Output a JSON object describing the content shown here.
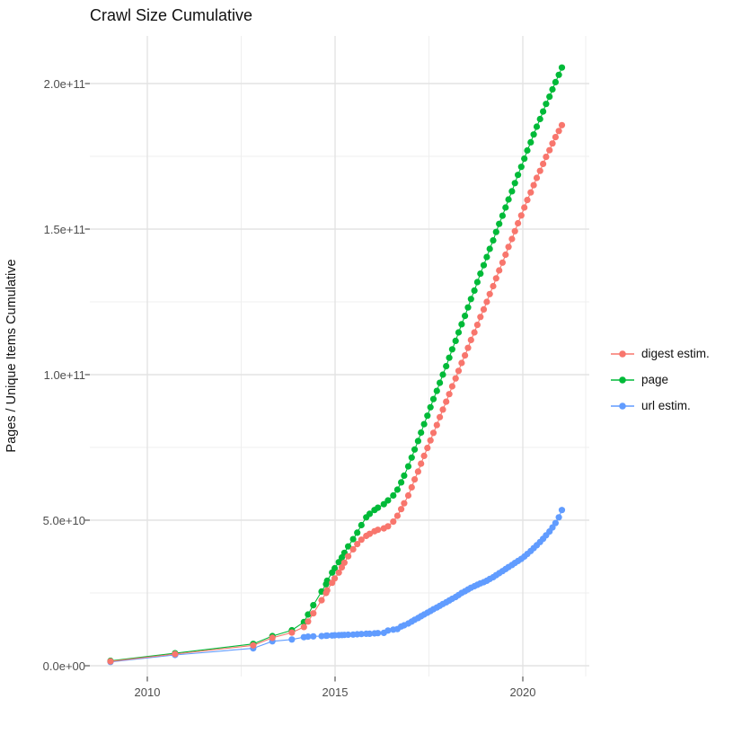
{
  "title": "Crawl Size Cumulative",
  "axes": {
    "y_title": "Pages / Unique Items Cumulative",
    "y_ticks": [
      {
        "label": "0.0e+00",
        "value_e9": 0
      },
      {
        "label": "5.0e+10",
        "value_e9": 50
      },
      {
        "label": "1.0e+11",
        "value_e9": 100
      },
      {
        "label": "1.5e+11",
        "value_e9": 150
      },
      {
        "label": "2.0e+11",
        "value_e9": 200
      }
    ],
    "x_ticks": [
      {
        "label": "2010",
        "year": 2010
      },
      {
        "label": "2015",
        "year": 2015
      },
      {
        "label": "2020",
        "year": 2020
      }
    ]
  },
  "legend": {
    "items": [
      {
        "label": "digest estim.",
        "color": "#F8766D"
      },
      {
        "label": "page",
        "color": "#00BA38"
      },
      {
        "label": "url estim.",
        "color": "#619CFF"
      }
    ]
  },
  "colors": {
    "digest": "#F8766D",
    "page": "#00BA38",
    "url": "#619CFF",
    "grid_major": "#e3e3e3",
    "grid_minor": "#efefef",
    "tick_mark": "#333333",
    "tick_text": "#4d4d4d"
  },
  "chart_data": {
    "type": "scatter",
    "title": "Crawl Size Cumulative",
    "xlabel": "",
    "ylabel": "Pages / Unique Items Cumulative",
    "x_unit": "year (crawl date)",
    "value_unit": "items, stored as billions (1 = 1e9)",
    "xlim": [
      2008.5,
      2021.8
    ],
    "ylim_e9": [
      0,
      212
    ],
    "x_major_ticks": [
      2010,
      2015,
      2020
    ],
    "x_minor_ticks": [
      2012.5,
      2017.5
    ],
    "y_major_ticks_e9": [
      0,
      50,
      100,
      150,
      200
    ],
    "y_minor_ticks_e9": [
      25,
      75,
      125,
      175
    ],
    "grid": true,
    "legend_position": "right",
    "series": [
      {
        "name": "digest estim.",
        "color": "#F8766D",
        "points": [
          [
            2009.02,
            1.5
          ],
          [
            2010.74,
            4.0
          ],
          [
            2012.82,
            7.0
          ],
          [
            2013.33,
            9.6
          ],
          [
            2013.85,
            11.4
          ],
          [
            2014.17,
            13.3
          ],
          [
            2014.28,
            15.2
          ],
          [
            2014.42,
            18.0
          ],
          [
            2014.64,
            22.5
          ],
          [
            2014.76,
            25.0
          ],
          [
            2014.79,
            25.9
          ],
          [
            2014.92,
            28.5
          ],
          [
            2014.99,
            30.0
          ],
          [
            2015.1,
            32.0
          ],
          [
            2015.18,
            33.8
          ],
          [
            2015.25,
            35.4
          ],
          [
            2015.35,
            37.6
          ],
          [
            2015.48,
            40.0
          ],
          [
            2015.59,
            41.8
          ],
          [
            2015.7,
            43.3
          ],
          [
            2015.83,
            44.6
          ],
          [
            2015.92,
            45.3
          ],
          [
            2016.05,
            46.2
          ],
          [
            2016.14,
            46.7
          ],
          [
            2016.3,
            47.2
          ],
          [
            2016.41,
            47.9
          ],
          [
            2016.55,
            49.5
          ],
          [
            2016.66,
            51.5
          ],
          [
            2016.76,
            53.8
          ],
          [
            2016.84,
            55.8
          ],
          [
            2016.95,
            58.5
          ],
          [
            2017.04,
            61.3
          ],
          [
            2017.12,
            64.0
          ],
          [
            2017.21,
            66.7
          ],
          [
            2017.29,
            69.4
          ],
          [
            2017.37,
            72.1
          ],
          [
            2017.46,
            74.8
          ],
          [
            2017.54,
            77.4
          ],
          [
            2017.62,
            80.0
          ],
          [
            2017.71,
            82.7
          ],
          [
            2017.79,
            85.4
          ],
          [
            2017.87,
            88.0
          ],
          [
            2017.96,
            90.7
          ],
          [
            2018.04,
            93.3
          ],
          [
            2018.12,
            96.0
          ],
          [
            2018.21,
            98.7
          ],
          [
            2018.29,
            101.3
          ],
          [
            2018.37,
            104.0
          ],
          [
            2018.46,
            106.6
          ],
          [
            2018.54,
            109.2
          ],
          [
            2018.62,
            111.9
          ],
          [
            2018.71,
            114.5
          ],
          [
            2018.79,
            117.1
          ],
          [
            2018.87,
            119.8
          ],
          [
            2018.96,
            122.4
          ],
          [
            2019.04,
            125.0
          ],
          [
            2019.12,
            127.7
          ],
          [
            2019.21,
            130.4
          ],
          [
            2019.29,
            133.1
          ],
          [
            2019.37,
            135.8
          ],
          [
            2019.46,
            138.5
          ],
          [
            2019.54,
            141.2
          ],
          [
            2019.62,
            143.9
          ],
          [
            2019.71,
            146.6
          ],
          [
            2019.79,
            149.3
          ],
          [
            2019.87,
            152.0
          ],
          [
            2019.96,
            154.7
          ],
          [
            2020.04,
            157.4
          ],
          [
            2020.12,
            160.0
          ],
          [
            2020.21,
            162.6
          ],
          [
            2020.29,
            165.1
          ],
          [
            2020.37,
            167.6
          ],
          [
            2020.46,
            170.0
          ],
          [
            2020.54,
            172.4
          ],
          [
            2020.62,
            174.8
          ],
          [
            2020.71,
            177.1
          ],
          [
            2020.79,
            179.4
          ],
          [
            2020.87,
            181.6
          ],
          [
            2020.96,
            183.7
          ],
          [
            2021.04,
            185.7
          ]
        ]
      },
      {
        "name": "page",
        "color": "#00BA38",
        "points": [
          [
            2009.02,
            1.7
          ],
          [
            2010.74,
            4.3
          ],
          [
            2012.82,
            7.5
          ],
          [
            2013.33,
            10.2
          ],
          [
            2013.85,
            12.2
          ],
          [
            2014.17,
            15.0
          ],
          [
            2014.28,
            17.6
          ],
          [
            2014.42,
            20.8
          ],
          [
            2014.64,
            25.5
          ],
          [
            2014.76,
            28.0
          ],
          [
            2014.79,
            29.2
          ],
          [
            2014.92,
            32.0
          ],
          [
            2014.99,
            33.5
          ],
          [
            2015.1,
            35.6
          ],
          [
            2015.18,
            37.2
          ],
          [
            2015.25,
            38.8
          ],
          [
            2015.35,
            41.0
          ],
          [
            2015.48,
            43.5
          ],
          [
            2015.59,
            45.7
          ],
          [
            2015.7,
            48.3
          ],
          [
            2015.83,
            51.0
          ],
          [
            2015.92,
            52.2
          ],
          [
            2016.05,
            53.5
          ],
          [
            2016.14,
            54.3
          ],
          [
            2016.3,
            55.5
          ],
          [
            2016.41,
            56.8
          ],
          [
            2016.55,
            58.5
          ],
          [
            2016.66,
            60.5
          ],
          [
            2016.76,
            63.0
          ],
          [
            2016.84,
            65.3
          ],
          [
            2016.95,
            68.5
          ],
          [
            2017.04,
            71.5
          ],
          [
            2017.12,
            74.3
          ],
          [
            2017.21,
            77.2
          ],
          [
            2017.29,
            80.1
          ],
          [
            2017.37,
            83.0
          ],
          [
            2017.46,
            85.9
          ],
          [
            2017.54,
            88.8
          ],
          [
            2017.62,
            91.6
          ],
          [
            2017.71,
            94.4
          ],
          [
            2017.79,
            97.2
          ],
          [
            2017.87,
            100.0
          ],
          [
            2017.96,
            102.9
          ],
          [
            2018.04,
            105.8
          ],
          [
            2018.12,
            108.7
          ],
          [
            2018.21,
            111.6
          ],
          [
            2018.29,
            114.5
          ],
          [
            2018.37,
            117.3
          ],
          [
            2018.46,
            120.2
          ],
          [
            2018.54,
            123.1
          ],
          [
            2018.62,
            126.0
          ],
          [
            2018.71,
            128.9
          ],
          [
            2018.79,
            131.8
          ],
          [
            2018.87,
            134.7
          ],
          [
            2018.96,
            137.6
          ],
          [
            2019.04,
            140.4
          ],
          [
            2019.12,
            143.2
          ],
          [
            2019.21,
            146.1
          ],
          [
            2019.29,
            149.0
          ],
          [
            2019.37,
            151.8
          ],
          [
            2019.46,
            154.6
          ],
          [
            2019.54,
            157.4
          ],
          [
            2019.62,
            160.2
          ],
          [
            2019.71,
            163.0
          ],
          [
            2019.79,
            165.8
          ],
          [
            2019.87,
            168.6
          ],
          [
            2019.96,
            171.4
          ],
          [
            2020.04,
            174.2
          ],
          [
            2020.12,
            177.0
          ],
          [
            2020.21,
            179.8
          ],
          [
            2020.29,
            182.5
          ],
          [
            2020.37,
            185.2
          ],
          [
            2020.46,
            187.8
          ],
          [
            2020.54,
            190.4
          ],
          [
            2020.62,
            193.0
          ],
          [
            2020.71,
            195.5
          ],
          [
            2020.79,
            198.0
          ],
          [
            2020.87,
            200.5
          ],
          [
            2020.96,
            203.0
          ],
          [
            2021.04,
            205.5
          ]
        ]
      },
      {
        "name": "url estim.",
        "color": "#619CFF",
        "points": [
          [
            2009.02,
            1.3
          ],
          [
            2010.74,
            3.7
          ],
          [
            2012.82,
            6.0
          ],
          [
            2013.33,
            8.4
          ],
          [
            2013.85,
            9.0
          ],
          [
            2014.17,
            9.8
          ],
          [
            2014.28,
            10.0
          ],
          [
            2014.42,
            10.1
          ],
          [
            2014.64,
            10.2
          ],
          [
            2014.76,
            10.3
          ],
          [
            2014.79,
            10.35
          ],
          [
            2014.92,
            10.4
          ],
          [
            2014.99,
            10.45
          ],
          [
            2015.1,
            10.5
          ],
          [
            2015.18,
            10.55
          ],
          [
            2015.25,
            10.6
          ],
          [
            2015.35,
            10.65
          ],
          [
            2015.48,
            10.7
          ],
          [
            2015.59,
            10.8
          ],
          [
            2015.7,
            10.9
          ],
          [
            2015.83,
            11.0
          ],
          [
            2015.92,
            11.0
          ],
          [
            2016.05,
            11.1
          ],
          [
            2016.14,
            11.2
          ],
          [
            2016.3,
            11.3
          ],
          [
            2016.41,
            12.1
          ],
          [
            2016.55,
            12.4
          ],
          [
            2016.66,
            12.6
          ],
          [
            2016.76,
            13.5
          ],
          [
            2016.84,
            13.9
          ],
          [
            2016.95,
            14.5
          ],
          [
            2017.04,
            15.2
          ],
          [
            2017.12,
            15.8
          ],
          [
            2017.21,
            16.4
          ],
          [
            2017.29,
            17.0
          ],
          [
            2017.37,
            17.6
          ],
          [
            2017.46,
            18.2
          ],
          [
            2017.54,
            18.8
          ],
          [
            2017.62,
            19.4
          ],
          [
            2017.71,
            20.0
          ],
          [
            2017.79,
            20.6
          ],
          [
            2017.87,
            21.2
          ],
          [
            2017.96,
            21.8
          ],
          [
            2018.04,
            22.4
          ],
          [
            2018.12,
            23.0
          ],
          [
            2018.21,
            23.6
          ],
          [
            2018.29,
            24.3
          ],
          [
            2018.37,
            25.0
          ],
          [
            2018.46,
            25.6
          ],
          [
            2018.54,
            26.2
          ],
          [
            2018.62,
            26.8
          ],
          [
            2018.71,
            27.3
          ],
          [
            2018.79,
            27.8
          ],
          [
            2018.87,
            28.3
          ],
          [
            2018.96,
            28.7
          ],
          [
            2019.04,
            29.2
          ],
          [
            2019.12,
            29.8
          ],
          [
            2019.21,
            30.4
          ],
          [
            2019.29,
            31.1
          ],
          [
            2019.37,
            31.8
          ],
          [
            2019.46,
            32.5
          ],
          [
            2019.54,
            33.2
          ],
          [
            2019.62,
            33.9
          ],
          [
            2019.71,
            34.6
          ],
          [
            2019.79,
            35.3
          ],
          [
            2019.87,
            36.0
          ],
          [
            2019.96,
            36.7
          ],
          [
            2020.04,
            37.5
          ],
          [
            2020.12,
            38.4
          ],
          [
            2020.21,
            39.4
          ],
          [
            2020.29,
            40.4
          ],
          [
            2020.37,
            41.4
          ],
          [
            2020.46,
            42.5
          ],
          [
            2020.54,
            43.6
          ],
          [
            2020.62,
            44.8
          ],
          [
            2020.71,
            46.1
          ],
          [
            2020.79,
            47.5
          ],
          [
            2020.87,
            49.0
          ],
          [
            2020.96,
            51.0
          ],
          [
            2021.04,
            53.5
          ]
        ]
      }
    ]
  }
}
